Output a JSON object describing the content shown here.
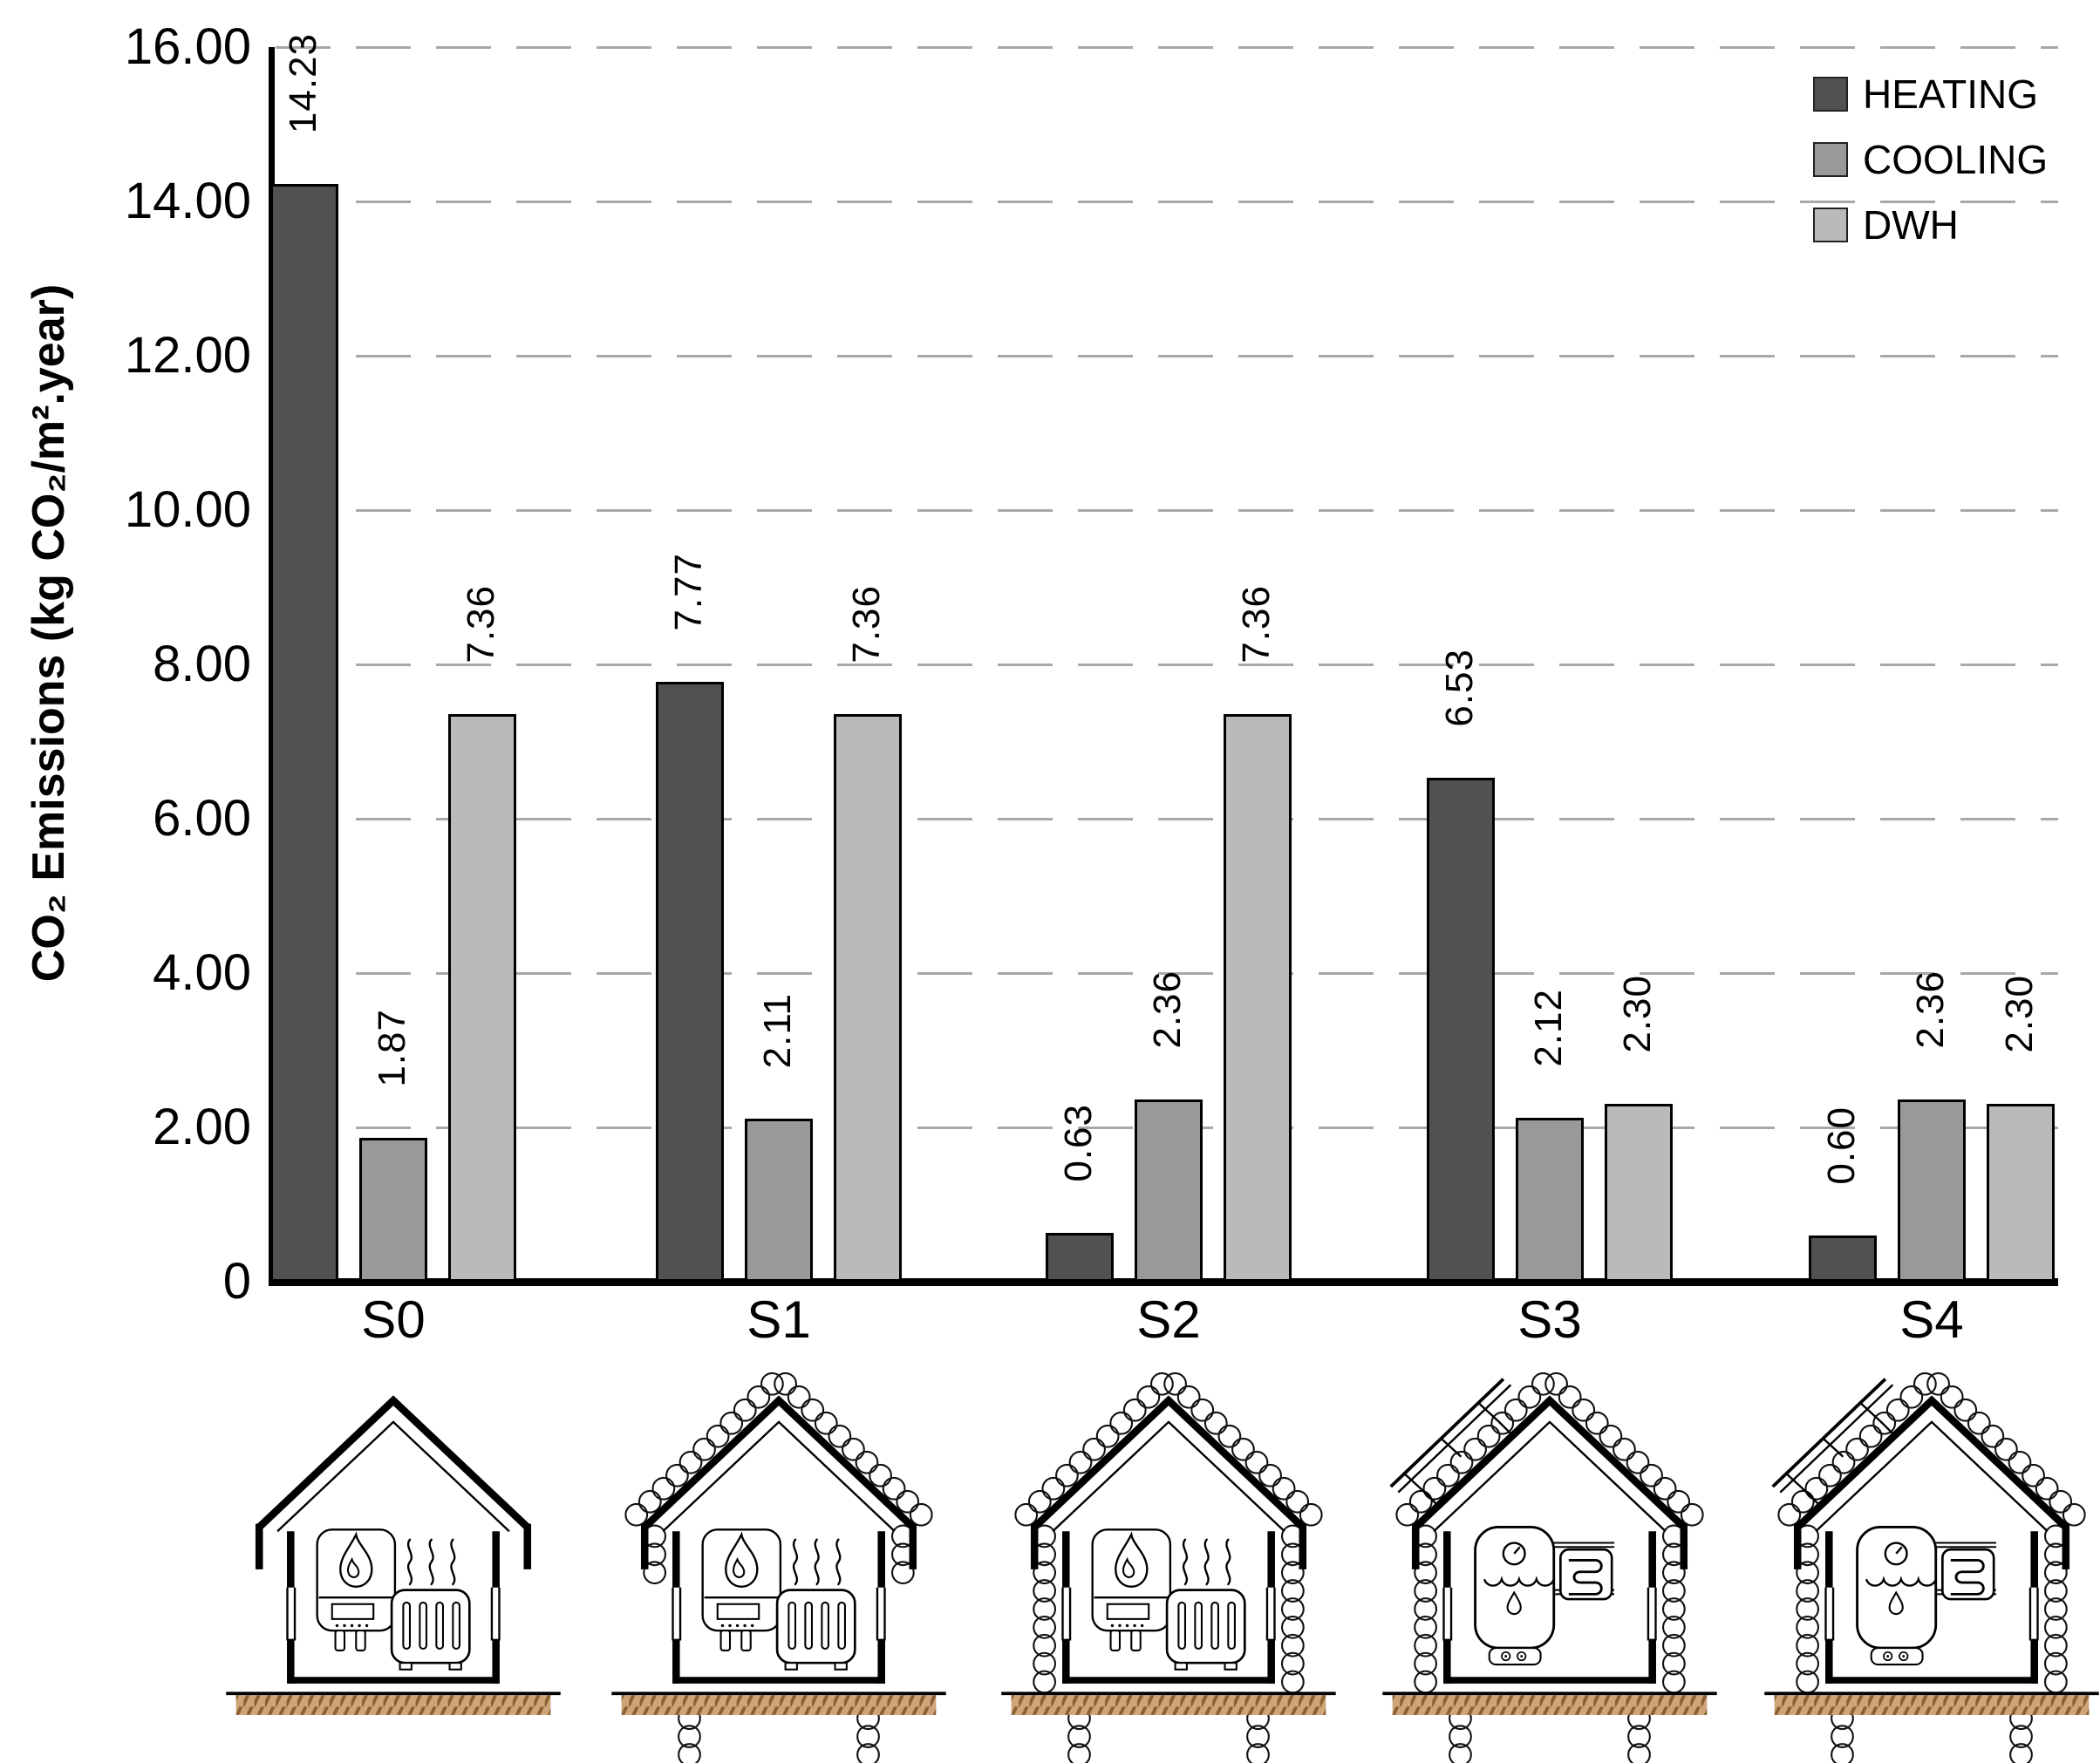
{
  "chart_data": {
    "type": "bar",
    "title": "",
    "categories": [
      "S0",
      "S1",
      "S2",
      "S3",
      "S4"
    ],
    "series": [
      {
        "name": "HEATING",
        "color": "#515151",
        "values": [
          14.23,
          7.77,
          0.63,
          6.53,
          0.6
        ],
        "labels": [
          "14.23",
          "7.77",
          "0.63",
          "6.53",
          "0.60"
        ]
      },
      {
        "name": "COOLING",
        "color": "#999999",
        "values": [
          1.87,
          2.11,
          2.36,
          2.12,
          2.36
        ],
        "labels": [
          "1.87",
          "2.11",
          "2.36",
          "2.12",
          "2.36"
        ]
      },
      {
        "name": "DWH",
        "color": "#bababa",
        "values": [
          7.36,
          7.36,
          7.36,
          2.3,
          2.3
        ],
        "labels": [
          "7.36",
          "7.36",
          "7.36",
          "2.30",
          "2.30"
        ]
      }
    ],
    "xlabel": "",
    "ylabel": "CO₂ Emissions (kg CO₂/m².year)",
    "ylim": [
      0,
      16
    ],
    "yticks": [
      "16.00",
      "14.00",
      "12.00",
      "10.00",
      "8.00",
      "6.00",
      "4.00",
      "2.00",
      "0"
    ],
    "ytick_values": [
      16,
      14,
      12,
      10,
      8,
      6,
      4,
      2,
      0
    ],
    "grid": "horizontal-dashed",
    "gridline_color": "#a8a8a8",
    "axis_color": "#000000",
    "legend_position": "top-right",
    "value_labels_rotated": true
  },
  "legend": {
    "items": [
      {
        "label": "HEATING",
        "color": "#515151"
      },
      {
        "label": "COOLING",
        "color": "#999999"
      },
      {
        "label": "DWH",
        "color": "#bababa"
      }
    ]
  },
  "houses": [
    {
      "scenario": "S0",
      "equipment": "gas-boiler-radiator",
      "insulation_roof": false,
      "insulation_walls": false,
      "insulation_floor": false,
      "solar_panel": false
    },
    {
      "scenario": "S1",
      "equipment": "gas-boiler-radiator",
      "insulation_roof": true,
      "insulation_walls": false,
      "insulation_floor": true,
      "solar_panel": false
    },
    {
      "scenario": "S2",
      "equipment": "gas-boiler-radiator",
      "insulation_roof": true,
      "insulation_walls": true,
      "insulation_floor": true,
      "solar_panel": false
    },
    {
      "scenario": "S3",
      "equipment": "heat-pump-water-heater",
      "insulation_roof": true,
      "insulation_walls": true,
      "insulation_floor": true,
      "solar_panel": true
    },
    {
      "scenario": "S4",
      "equipment": "heat-pump-water-heater",
      "insulation_roof": true,
      "insulation_walls": true,
      "insulation_floor": true,
      "solar_panel": true
    }
  ],
  "ground_color": "#cfa479",
  "ground_hatch_color": "#8a5f33"
}
